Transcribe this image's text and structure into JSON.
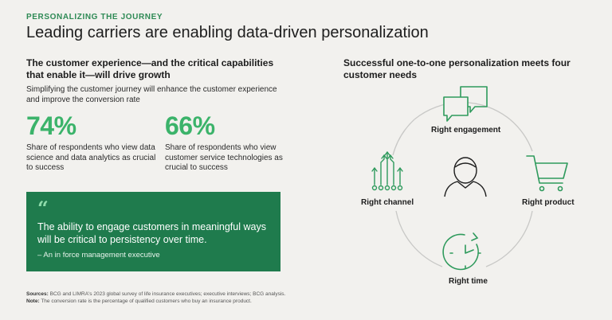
{
  "header": {
    "eyebrow": "PERSONALIZING THE JOURNEY",
    "title": "Leading carriers are enabling data-driven personalization"
  },
  "left": {
    "heading": "The customer experience—and the critical capabilities that enable it—will drive growth",
    "subheading": "Simplifying the customer journey will enhance the customer experience and improve the conversion rate",
    "stats": [
      {
        "value": "74%",
        "description": "Share of respondents who view data science and data analytics as crucial to success"
      },
      {
        "value": "66%",
        "description": "Share of respondents who view customer service technologies as crucial to success"
      }
    ],
    "quote": {
      "mark": "“",
      "text": "The ability to engage customers in meaningful ways will be critical to persistency over time.",
      "attribution": "– An in force management executive"
    }
  },
  "right": {
    "heading": "Successful one-to-one personalization meets four customer needs",
    "nodes": {
      "top": {
        "label": "Right engagement",
        "icon": "chat-bubbles-icon"
      },
      "right": {
        "label": "Right product",
        "icon": "shopping-cart-icon"
      },
      "bottom": {
        "label": "Right time",
        "icon": "clock-icon"
      },
      "left": {
        "label": "Right channel",
        "icon": "circuit-arrows-icon"
      },
      "center": {
        "icon": "person-icon"
      }
    }
  },
  "footer": {
    "sources_label": "Sources:",
    "sources_text": "BCG and LIMRA's 2023 global survey of life insurance executives; executive interviews; BCG analysis.",
    "note_label": "Note:",
    "note_text": "The conversion rate is the percentage of qualified customers who buy an insurance product."
  },
  "colors": {
    "accent_green": "#3bb36a",
    "dark_green": "#1f7b4d",
    "icon_green": "#2e9a5c",
    "background": "#f2f1ee"
  }
}
